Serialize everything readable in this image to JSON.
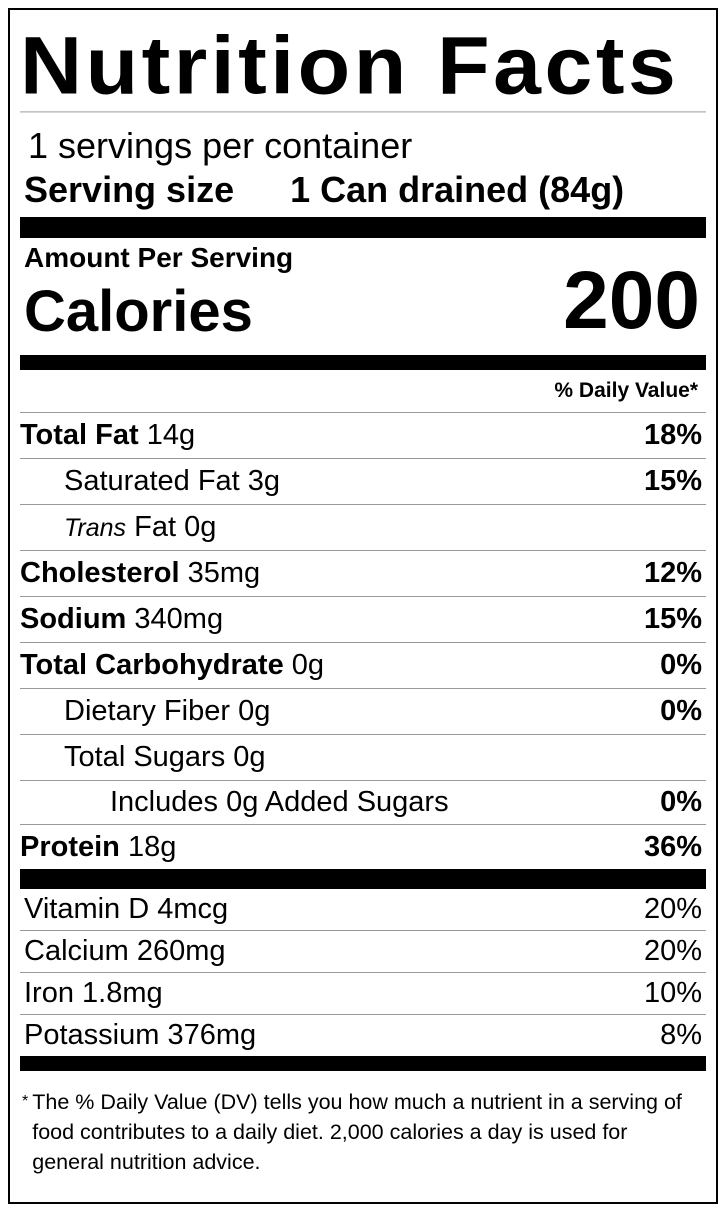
{
  "title": "Nutrition Facts",
  "servings_per_container": "1 servings per container",
  "serving_size": {
    "label": "Serving size",
    "value": "1 Can drained (84g)"
  },
  "amount_per_serving": "Amount Per Serving",
  "calories": {
    "label": "Calories",
    "value": "200"
  },
  "daily_value_header": "% Daily Value*",
  "nutrients": [
    {
      "name": "Total Fat",
      "amount": "14g",
      "dv": "18%"
    },
    {
      "name": "Saturated Fat",
      "amount": "3g",
      "dv": "15%"
    },
    {
      "name": "Trans",
      "suffix": "Fat",
      "amount": "0g",
      "dv": ""
    },
    {
      "name": "Cholesterol",
      "amount": "35mg",
      "dv": "12%"
    },
    {
      "name": "Sodium",
      "amount": "340mg",
      "dv": "15%"
    },
    {
      "name": "Total Carbohydrate",
      "amount": "0g",
      "dv": "0%"
    },
    {
      "name": "Dietary Fiber",
      "amount": "0g",
      "dv": "0%"
    },
    {
      "name": "Total Sugars",
      "amount": "0g",
      "dv": ""
    },
    {
      "name": "Includes 0g Added Sugars",
      "amount": "",
      "dv": "0%"
    },
    {
      "name": "Protein",
      "amount": "18g",
      "dv": "36%"
    }
  ],
  "vitamins": [
    {
      "name": "Vitamin D",
      "amount": "4mcg",
      "dv": "20%"
    },
    {
      "name": "Calcium",
      "amount": "260mg",
      "dv": "20%"
    },
    {
      "name": "Iron",
      "amount": "1.8mg",
      "dv": "10%"
    },
    {
      "name": "Potassium",
      "amount": "376mg",
      "dv": "8%"
    }
  ],
  "footnote": {
    "star": "*",
    "text": "The % Daily Value (DV) tells you how much a nutrient in a serving of food contributes to a daily diet. 2,000 calories a day is used for general nutrition advice."
  }
}
